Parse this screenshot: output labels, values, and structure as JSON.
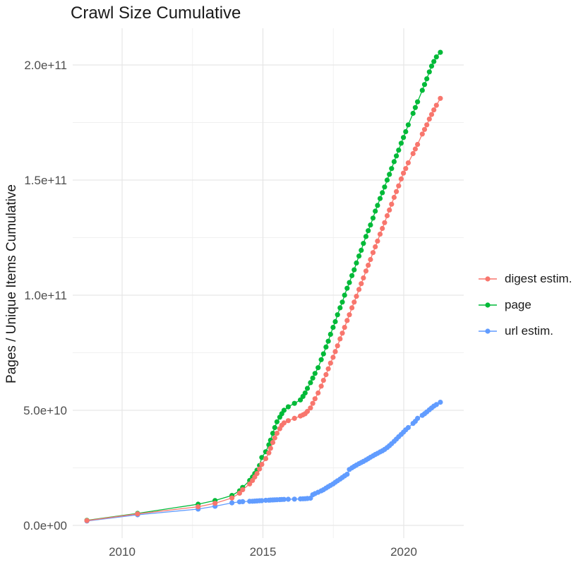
{
  "chart_data": {
    "type": "scatter",
    "title": "Crawl Size Cumulative",
    "xlabel": "",
    "ylabel": "Pages / Unique Items Cumulative",
    "legend_position": "right",
    "grid": true,
    "x_unit": "year",
    "xlim": [
      2008.25,
      2022.1
    ],
    "ylim": [
      0,
      215000000000.0
    ],
    "x_major_ticks": [
      {
        "value": 2010,
        "label": "2010"
      },
      {
        "value": 2015,
        "label": "2015"
      },
      {
        "value": 2020,
        "label": "2020"
      }
    ],
    "x_minor_ticks": [
      2012.5,
      2017.5
    ],
    "y_major_ticks": [
      {
        "value_e9": 0,
        "label": "0.0e+00"
      },
      {
        "value_e9": 50,
        "label": "5.0e+10"
      },
      {
        "value_e9": 100,
        "label": "1.0e+11"
      },
      {
        "value_e9": 150,
        "label": "1.5e+11"
      },
      {
        "value_e9": 200,
        "label": "2.0e+11"
      }
    ],
    "y_minor_ticks_e9": [
      25,
      75,
      125,
      175
    ],
    "x": [
      2008.75,
      2010.55,
      2012.7,
      2013.3,
      2013.9,
      2014.17,
      2014.28,
      2014.53,
      2014.63,
      2014.71,
      2014.79,
      2014.88,
      2014.96,
      2015.1,
      2015.21,
      2015.27,
      2015.35,
      2015.42,
      2015.5,
      2015.6,
      2015.67,
      2015.75,
      2015.9,
      2016.12,
      2016.33,
      2016.42,
      2016.5,
      2016.58,
      2016.69,
      2016.77,
      2016.85,
      2016.96,
      2017.07,
      2017.15,
      2017.24,
      2017.32,
      2017.4,
      2017.49,
      2017.57,
      2017.65,
      2017.74,
      2017.82,
      2017.9,
      2017.99,
      2018.07,
      2018.16,
      2018.24,
      2018.32,
      2018.41,
      2018.49,
      2018.57,
      2018.66,
      2018.74,
      2018.82,
      2018.91,
      2018.99,
      2019.07,
      2019.16,
      2019.24,
      2019.32,
      2019.41,
      2019.49,
      2019.57,
      2019.66,
      2019.74,
      2019.82,
      2019.91,
      2019.99,
      2020.07,
      2020.16,
      2020.33,
      2020.41,
      2020.49,
      2020.66,
      2020.74,
      2020.82,
      2020.91,
      2020.99,
      2021.07,
      2021.16,
      2021.3
    ],
    "series": [
      {
        "name": "digest estim.",
        "color": "#F8766D",
        "values_e9": [
          2.1,
          5.0,
          8.1,
          9.6,
          11.9,
          14,
          15.5,
          18,
          19.5,
          21,
          22.5,
          24.5,
          26.5,
          29,
          31.5,
          33.5,
          36,
          38,
          40,
          42,
          43.5,
          44.5,
          45.5,
          46.5,
          47.5,
          48,
          48.5,
          49.5,
          51,
          53,
          55,
          57.5,
          60.5,
          63,
          65.5,
          68,
          70.5,
          73,
          75.5,
          78,
          81,
          83.5,
          86,
          89,
          91.5,
          94.5,
          97,
          99.5,
          102.5,
          105,
          107.5,
          110.5,
          113,
          115.5,
          118.5,
          121,
          123.5,
          126.5,
          129,
          131.5,
          134.5,
          137,
          139.5,
          142.5,
          145,
          147.5,
          150.5,
          153,
          155,
          157.5,
          161.5,
          163.5,
          165.5,
          170,
          172,
          174,
          176.5,
          178.5,
          180.5,
          182.5,
          185.5
        ]
      },
      {
        "name": "page",
        "color": "#00BA38",
        "values_e9": [
          2.2,
          5.2,
          9.2,
          10.8,
          13,
          15,
          16.5,
          19.5,
          21,
          22.5,
          24,
          26,
          29.5,
          32,
          35,
          37,
          40,
          42.5,
          45,
          47,
          48.5,
          50,
          51.5,
          53,
          54.5,
          56,
          57.5,
          59.5,
          62,
          64,
          66,
          68.5,
          72,
          74.5,
          77.5,
          80,
          83,
          86,
          88.5,
          91.5,
          94.5,
          97,
          100,
          103,
          105.5,
          108.5,
          111,
          114,
          117,
          119.5,
          122.5,
          125.5,
          128,
          130.5,
          133.5,
          136.5,
          139,
          142,
          144.5,
          147,
          150,
          152.5,
          155,
          158,
          160.5,
          163,
          166,
          168.5,
          171,
          174,
          179,
          181.5,
          184,
          189,
          191.5,
          194,
          197,
          199.5,
          201.5,
          203.5,
          205.5
        ]
      },
      {
        "name": "url estim.",
        "color": "#619CFF",
        "values_e9": [
          1.9,
          4.6,
          7.1,
          8.3,
          9.8,
          10.2,
          10.3,
          10.45,
          10.5,
          10.55,
          10.6,
          10.7,
          10.75,
          10.9,
          10.95,
          11,
          11.05,
          11.1,
          11.15,
          11.2,
          11.25,
          11.3,
          11.35,
          11.4,
          11.5,
          11.55,
          11.6,
          11.7,
          11.8,
          13.3,
          13.8,
          14.4,
          15,
          15.5,
          16.2,
          16.8,
          17.4,
          18,
          18.7,
          19.4,
          20.1,
          20.8,
          21.5,
          22.2,
          24.3,
          25,
          25.6,
          26.2,
          26.8,
          27.3,
          27.8,
          28.4,
          29,
          29.6,
          30.2,
          30.8,
          31.3,
          31.9,
          32.4,
          33,
          33.8,
          34.6,
          35.5,
          36.5,
          37.5,
          38.5,
          39.5,
          40.5,
          41.5,
          42.5,
          44.3,
          45.2,
          46.5,
          47.8,
          48.5,
          49.3,
          50.2,
          51,
          51.8,
          52.5,
          53.5
        ]
      }
    ],
    "style": {
      "grid_major_color": "#e6e6e6",
      "grid_minor_color": "#f0f0f0",
      "point_radius_px": 3.6,
      "background": "#ffffff"
    }
  }
}
